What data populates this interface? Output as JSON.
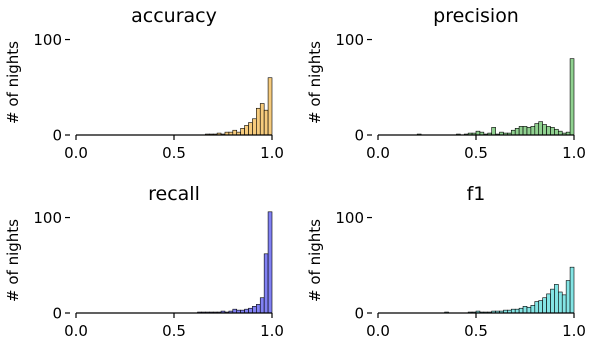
{
  "chart_data": [
    {
      "type": "bar",
      "title": "accuracy",
      "xlabel": "",
      "ylabel": "# of nights",
      "xlim": [
        0.0,
        1.0
      ],
      "ylim": [
        0,
        110
      ],
      "xticks": [
        "0.0",
        "0.5",
        "1.0"
      ],
      "yticks": [
        "0",
        "100"
      ],
      "color": "#f5c266",
      "bin_width": 0.02,
      "bin_starts": [
        0.66,
        0.68,
        0.7,
        0.72,
        0.74,
        0.76,
        0.78,
        0.8,
        0.82,
        0.84,
        0.86,
        0.88,
        0.9,
        0.92,
        0.94,
        0.96,
        0.98
      ],
      "values": [
        1,
        1,
        1,
        2,
        1,
        3,
        3,
        5,
        3,
        7,
        10,
        13,
        17,
        28,
        33,
        26,
        60
      ]
    },
    {
      "type": "bar",
      "title": "precision",
      "xlabel": "",
      "ylabel": "# of nights",
      "xlim": [
        0.0,
        1.0
      ],
      "ylim": [
        0,
        110
      ],
      "xticks": [
        "0.0",
        "0.5",
        "1.0"
      ],
      "yticks": [
        "0",
        "100"
      ],
      "color": "#7cc97c",
      "bin_width": 0.02,
      "bin_starts": [
        0.2,
        0.4,
        0.44,
        0.46,
        0.48,
        0.5,
        0.52,
        0.54,
        0.56,
        0.58,
        0.6,
        0.62,
        0.64,
        0.66,
        0.68,
        0.7,
        0.72,
        0.74,
        0.76,
        0.78,
        0.8,
        0.82,
        0.84,
        0.86,
        0.88,
        0.9,
        0.92,
        0.94,
        0.96,
        0.98
      ],
      "values": [
        1,
        1,
        1,
        2,
        2,
        4,
        3,
        1,
        2,
        8,
        1,
        3,
        2,
        2,
        5,
        7,
        9,
        9,
        8,
        9,
        12,
        14,
        11,
        9,
        8,
        6,
        4,
        2,
        3,
        80
      ]
    },
    {
      "type": "bar",
      "title": "recall",
      "xlabel": "",
      "ylabel": "# of nights",
      "xlim": [
        0.0,
        1.0
      ],
      "ylim": [
        0,
        110
      ],
      "xticks": [
        "0.0",
        "0.5",
        "1.0"
      ],
      "yticks": [
        "0",
        "100"
      ],
      "color": "#6b6bf2",
      "bin_width": 0.02,
      "bin_starts": [
        0.62,
        0.64,
        0.66,
        0.68,
        0.7,
        0.72,
        0.74,
        0.76,
        0.78,
        0.8,
        0.82,
        0.84,
        0.86,
        0.88,
        0.9,
        0.92,
        0.94,
        0.96,
        0.98
      ],
      "values": [
        1,
        1,
        1,
        1,
        1,
        1,
        2,
        1,
        2,
        4,
        3,
        3,
        4,
        5,
        7,
        9,
        16,
        62,
        106
      ]
    },
    {
      "type": "bar",
      "title": "f1",
      "xlabel": "",
      "ylabel": "# of nights",
      "xlim": [
        0.0,
        1.0
      ],
      "ylim": [
        0,
        110
      ],
      "xticks": [
        "0.0",
        "0.5",
        "1.0"
      ],
      "yticks": [
        "0",
        "100"
      ],
      "color": "#6fe0e0",
      "bin_width": 0.02,
      "bin_starts": [
        0.34,
        0.46,
        0.48,
        0.5,
        0.52,
        0.54,
        0.56,
        0.58,
        0.6,
        0.62,
        0.64,
        0.66,
        0.68,
        0.7,
        0.72,
        0.74,
        0.76,
        0.78,
        0.8,
        0.82,
        0.84,
        0.86,
        0.88,
        0.9,
        0.92,
        0.94,
        0.96,
        0.98
      ],
      "values": [
        1,
        1,
        1,
        2,
        1,
        1,
        1,
        2,
        2,
        2,
        3,
        3,
        4,
        4,
        5,
        7,
        6,
        8,
        12,
        13,
        16,
        20,
        25,
        30,
        22,
        19,
        34,
        48
      ]
    }
  ]
}
